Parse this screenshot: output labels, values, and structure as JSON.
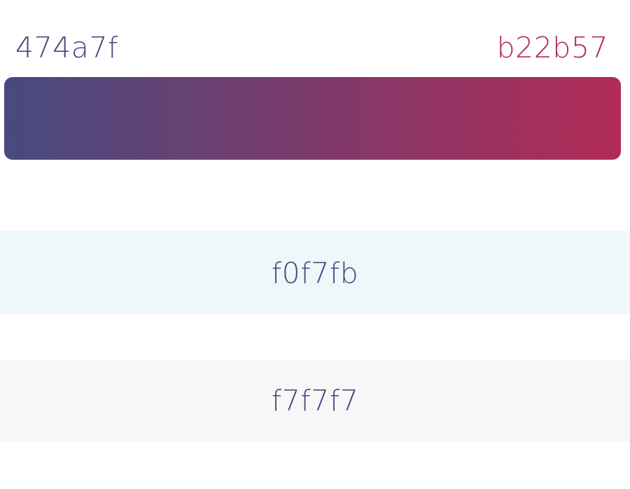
{
  "gradient": {
    "start_label": "474a7f",
    "end_label": "b22b57",
    "start_color": "#474a7f",
    "end_color": "#b22b57"
  },
  "swatches": [
    {
      "label": "f0f7fb",
      "color": "#f0f7fb",
      "text_color": "#474a7f"
    },
    {
      "label": "f7f7f7",
      "color": "#f7f7f7",
      "text_color": "#474a7f"
    }
  ]
}
